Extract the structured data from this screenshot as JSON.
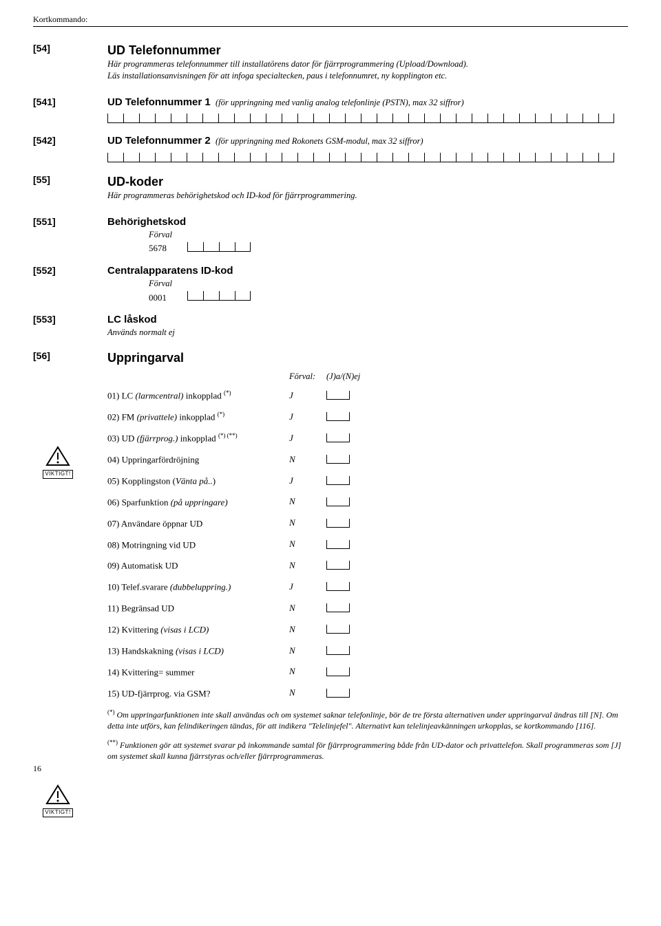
{
  "header": "Kortkommando:",
  "sections": {
    "s54": {
      "code": "[54]",
      "title": "UD Telefonnummer",
      "desc1": "Här programmeras telefonnummer till installatörens dator för fjärrprogrammering (Upload/Download).",
      "desc2": "Läs installationsanvisningen för att infoga specialtecken, paus i telefonnumret, ny kopplington etc."
    },
    "s541": {
      "code": "[541]",
      "title": "UD Telefonnummer 1",
      "after": "(för uppringning med vanlig analog telefonlinje (PSTN), max 32 siffror)"
    },
    "s542": {
      "code": "[542]",
      "title": "UD Telefonnummer 2",
      "after": "(för uppringning med Rokonets GSM-modul, max 32 siffror)"
    },
    "s55": {
      "code": "[55]",
      "title": "UD-koder",
      "desc": "Här programmeras behörighetskod och ID-kod för fjärrprogrammering."
    },
    "s551": {
      "code": "[551]",
      "title": "Behörighetskod",
      "forval_label": "Förval",
      "forval_val": "5678"
    },
    "s552": {
      "code": "[552]",
      "title": "Centralapparatens ID-kod",
      "forval_label": "Förval",
      "forval_val": "0001"
    },
    "s553": {
      "code": "[553]",
      "title": "LC låskod",
      "desc": "Används normalt ej"
    },
    "s56": {
      "code": "[56]",
      "title": "Uppringarval",
      "head_forval": "Förval:",
      "head_jn": "(J)a/(N)ej",
      "items": [
        {
          "label_pre": "01) LC ",
          "label_it": "(larmcentral)",
          "label_post": " inkopplad ",
          "sup": "(*)",
          "val": "J"
        },
        {
          "label_pre": "02) FM ",
          "label_it": "(privattele)",
          "label_post": " inkopplad ",
          "sup": "(*)",
          "val": "J"
        },
        {
          "label_pre": "03) UD ",
          "label_it": "(fjärrprog.)",
          "label_post": " inkopplad ",
          "sup": "(*) (**)",
          "val": "J"
        },
        {
          "label_pre": "04) Uppringarfördröjning",
          "label_it": "",
          "label_post": "",
          "sup": "",
          "val": "N"
        },
        {
          "label_pre": "05) Kopplingston (",
          "label_it": "Vänta på..",
          "label_post": ")",
          "sup": "",
          "val": "J"
        },
        {
          "label_pre": "06) Sparfunktion ",
          "label_it": "(på uppringare)",
          "label_post": "",
          "sup": "",
          "val": "N"
        },
        {
          "label_pre": "07) Användare öppnar UD",
          "label_it": "",
          "label_post": "",
          "sup": "",
          "val": "N"
        },
        {
          "label_pre": "08) Motringning vid UD",
          "label_it": "",
          "label_post": "",
          "sup": "",
          "val": "N"
        },
        {
          "label_pre": "09) Automatisk UD",
          "label_it": "",
          "label_post": "",
          "sup": "",
          "val": "N"
        },
        {
          "label_pre": "10) Telef.svarare ",
          "label_it": "(dubbeluppring.)",
          "label_post": "",
          "sup": "",
          "val": "J"
        },
        {
          "label_pre": "11) Begränsad UD",
          "label_it": "",
          "label_post": "",
          "sup": "",
          "val": "N"
        },
        {
          "label_pre": "12) Kvittering ",
          "label_it": "(visas i LCD)",
          "label_post": "",
          "sup": "",
          "val": "N"
        },
        {
          "label_pre": "13) Handskakning ",
          "label_it": "(visas i LCD)",
          "label_post": "",
          "sup": "",
          "val": "N"
        },
        {
          "label_pre": "14) Kvittering= summer",
          "label_it": "",
          "label_post": "",
          "sup": "",
          "val": "N"
        },
        {
          "label_pre": "15)  UD-fjärrprog.  via GSM?",
          "label_it": "",
          "label_post": "",
          "sup": "",
          "val": "N"
        }
      ]
    }
  },
  "footnotes": {
    "f1_sup": "(*)",
    "f1": " Om uppringarfunktionen inte skall användas och om systemet saknar telefonlinje, bör de tre första alternativen under uppringarval ändras till [N]. Om detta inte utförs, kan felindikeringen tändas, för att indikera \"Telelinjefel\". Alternativt kan telelinjeavkänningen urkopplas, se kortkommando [116].",
    "f2_sup": "(**)",
    "f2": " Funktionen gör att systemet svarar på inkommande samtal för fjärrprogrammering både från UD-dator och privattelefon. Skall programmeras som [J] om systemet skall kunna fjärrstyras och/eller fjärrprogrammeras."
  },
  "viktigt_label": "VIKTIGT!",
  "page_number": "16"
}
